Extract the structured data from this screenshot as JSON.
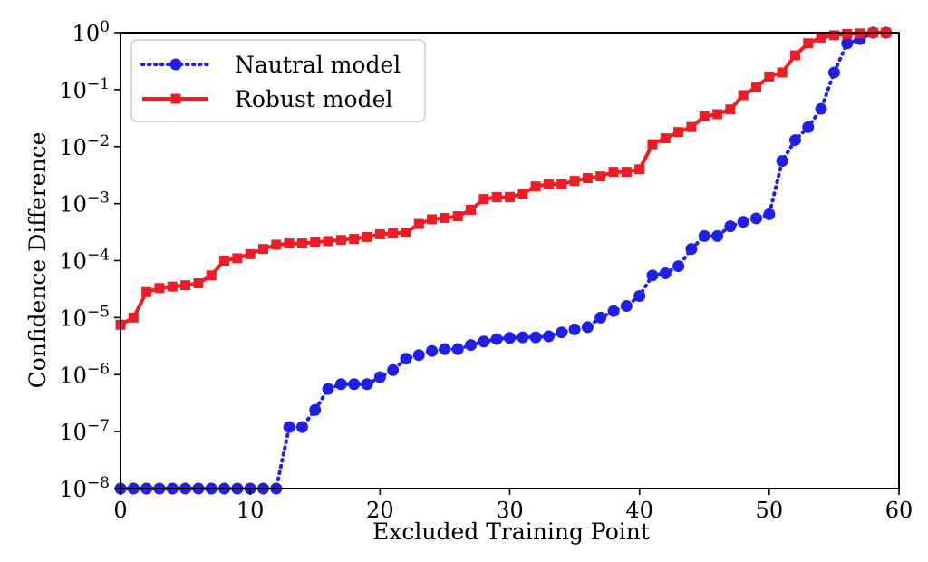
{
  "chart_data": {
    "type": "line",
    "xlabel": "Excluded Training Point",
    "ylabel": "Confidence Difference",
    "xlim": [
      0,
      60
    ],
    "ylim_log10": [
      -8,
      0
    ],
    "yscale": "log",
    "grid": false,
    "legend_position": "upper-left",
    "x_ticks": [
      0,
      10,
      20,
      30,
      40,
      50,
      60
    ],
    "x_tick_labels": [
      "0",
      "10",
      "20",
      "30",
      "40",
      "50",
      "60"
    ],
    "y_ticks_log10": [
      -8,
      -7,
      -6,
      -5,
      -4,
      -3,
      -2,
      -1,
      0
    ],
    "y_tick_base": "10",
    "y_tick_exponents": [
      "−8",
      "−7",
      "−6",
      "−5",
      "−4",
      "−3",
      "−2",
      "−1",
      "0"
    ],
    "series": [
      {
        "name": "Nautral model",
        "color": "#1f1fe6",
        "line_style": "dotted",
        "marker": "circle",
        "x": [
          0,
          1,
          2,
          3,
          4,
          5,
          6,
          7,
          8,
          9,
          10,
          11,
          12,
          13,
          14,
          15,
          16,
          17,
          18,
          19,
          20,
          21,
          22,
          23,
          24,
          25,
          26,
          27,
          28,
          29,
          30,
          31,
          32,
          33,
          34,
          35,
          36,
          37,
          38,
          39,
          40,
          41,
          42,
          43,
          44,
          45,
          46,
          47,
          48,
          49,
          50,
          51,
          52,
          53,
          54,
          55,
          56,
          57,
          58,
          59
        ],
        "y": [
          1e-08,
          1e-08,
          1e-08,
          1e-08,
          1e-08,
          1e-08,
          1e-08,
          1e-08,
          1e-08,
          1e-08,
          1e-08,
          1e-08,
          1e-08,
          1.2e-07,
          1.2e-07,
          2.4e-07,
          5.6e-07,
          6.8e-07,
          6.8e-07,
          6.8e-07,
          9e-07,
          1.2e-06,
          1.9e-06,
          2.2e-06,
          2.6e-06,
          2.8e-06,
          2.8e-06,
          3.3e-06,
          3.8e-06,
          4.2e-06,
          4.4e-06,
          4.5e-06,
          4.5e-06,
          4.7e-06,
          5.5e-06,
          6.2e-06,
          6.8e-06,
          1e-05,
          1.3e-05,
          1.6e-05,
          2.4e-05,
          5.5e-05,
          6e-05,
          8e-05,
          0.00016,
          0.00027,
          0.00027,
          0.0004,
          0.00048,
          0.00055,
          0.00065,
          0.0056,
          0.013,
          0.022,
          0.046,
          0.2,
          0.65,
          0.77,
          1,
          1
        ]
      },
      {
        "name": "Robust model",
        "color": "#ee1c25",
        "line_style": "solid",
        "marker": "square",
        "x": [
          0,
          1,
          2,
          3,
          4,
          5,
          6,
          7,
          8,
          9,
          10,
          11,
          12,
          13,
          14,
          15,
          16,
          17,
          18,
          19,
          20,
          21,
          22,
          23,
          24,
          25,
          26,
          27,
          28,
          29,
          30,
          31,
          32,
          33,
          34,
          35,
          36,
          37,
          38,
          39,
          40,
          41,
          42,
          43,
          44,
          45,
          46,
          47,
          48,
          49,
          50,
          51,
          52,
          53,
          54,
          55,
          56,
          57,
          58,
          59
        ],
        "y": [
          7.5e-06,
          1e-05,
          2.8e-05,
          3.3e-05,
          3.5e-05,
          3.7e-05,
          4e-05,
          5.5e-05,
          0.0001,
          0.00011,
          0.00013,
          0.00016,
          0.00019,
          0.0002,
          0.0002,
          0.00021,
          0.00022,
          0.00023,
          0.00024,
          0.00026,
          0.00029,
          0.0003,
          0.00031,
          0.00044,
          0.00053,
          0.00056,
          0.0006,
          0.00078,
          0.0012,
          0.0013,
          0.0013,
          0.0015,
          0.002,
          0.0022,
          0.0022,
          0.0025,
          0.0028,
          0.003,
          0.0036,
          0.0036,
          0.004,
          0.011,
          0.014,
          0.018,
          0.022,
          0.034,
          0.037,
          0.045,
          0.08,
          0.11,
          0.17,
          0.2,
          0.4,
          0.65,
          0.82,
          0.9,
          0.95,
          0.97,
          1,
          1
        ]
      }
    ]
  }
}
